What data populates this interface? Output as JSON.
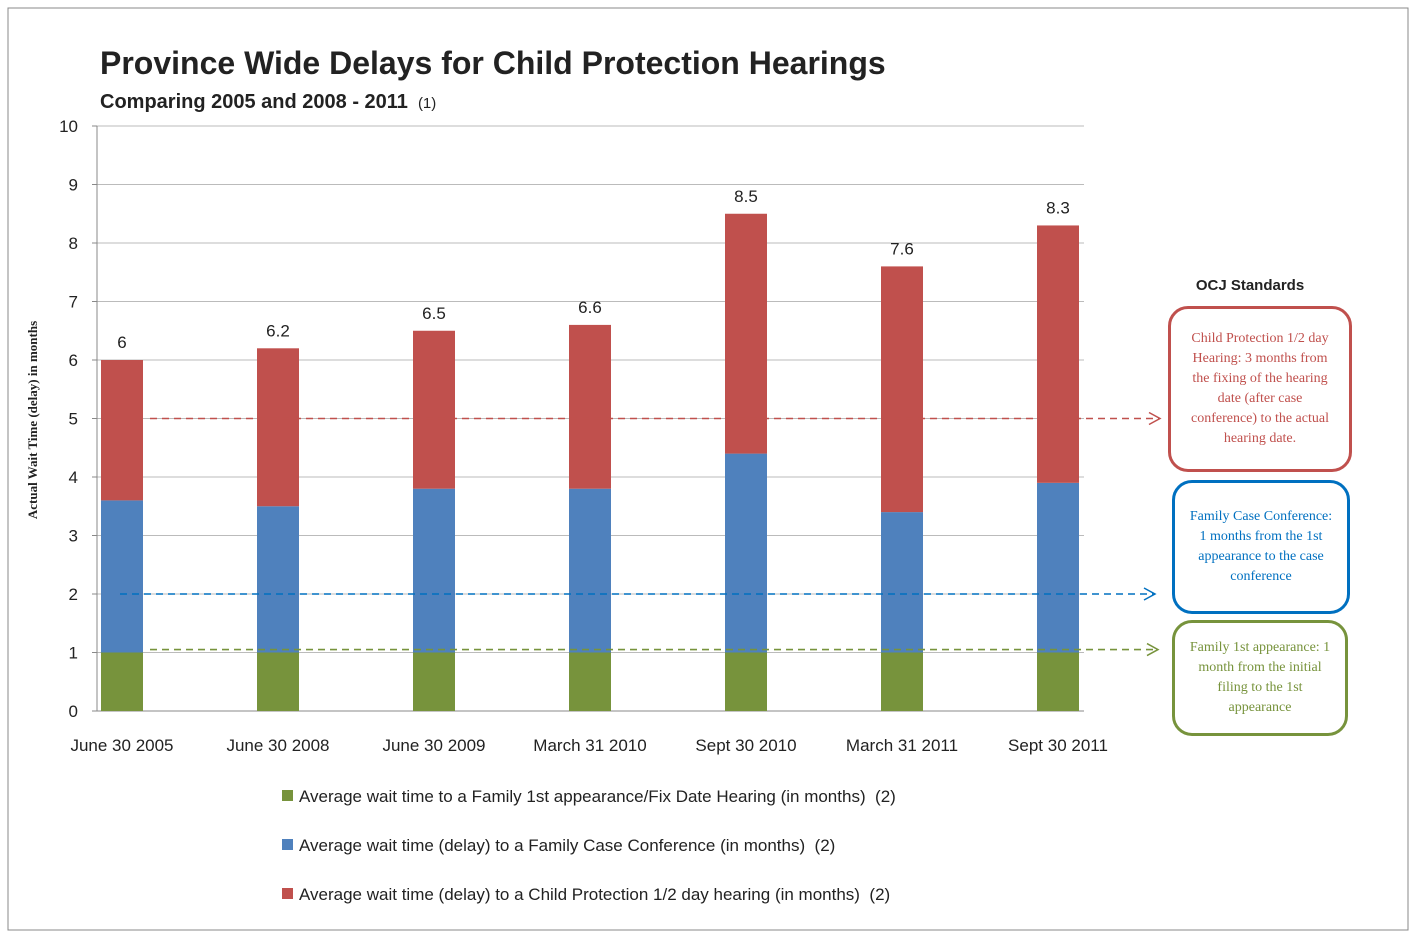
{
  "chart_data": {
    "type": "stacked_bar",
    "title": "Province Wide Delays for Child Protection Hearings",
    "subtitle": "Comparing 2005 and 2008 - 2011",
    "subtitle_note": "(1)",
    "y_label": "Actual Wait Time (delay) in months",
    "categories": [
      "June 30 2005",
      "June 30 2008",
      "June 30 2009",
      "March 31 2010",
      "Sept 30 2010",
      "March 31 2011",
      "Sept 30 2011"
    ],
    "series": [
      {
        "name": "Average wait time to a Family 1st appearance/Fix Date Hearing (in months)  (2)",
        "color": "#77933c",
        "values": [
          1,
          1,
          1,
          1,
          1,
          1,
          1
        ]
      },
      {
        "name": "Average wait time (delay) to a Family Case Conference (in months)  (2)",
        "color": "#4f81bd",
        "values": [
          2.6,
          2.5,
          2.8,
          2.8,
          3.4,
          2.4,
          2.9
        ]
      },
      {
        "name": "Average wait time (delay) to a Child Protection 1/2 day hearing (in months)  (2)",
        "color": "#c0504d",
        "values": [
          2.4,
          2.7,
          2.7,
          2.8,
          4.1,
          4.2,
          4.4
        ]
      }
    ],
    "totals": [
      6,
      6.2,
      6.5,
      6.6,
      8.5,
      7.6,
      8.3
    ],
    "ylim": [
      0,
      10
    ],
    "yticks": [
      0,
      1,
      2,
      3,
      4,
      5,
      6,
      7,
      8,
      9,
      10
    ],
    "grid": true,
    "standards_title": "OCJ Standards",
    "standards": [
      {
        "value": 5,
        "color": "#c0504d",
        "text": "Child Protection 1/2 day Hearing: 3 months from the fixing of the hearing date (after case conference) to the actual hearing date."
      },
      {
        "value": 2,
        "color": "#0070c0",
        "text": "Family Case Conference: 1 months from the 1st appearance to the case conference"
      },
      {
        "value": 1.05,
        "color": "#77933c",
        "text": "Family 1st appearance: 1 month from the initial  filing to the 1st appearance"
      }
    ]
  }
}
